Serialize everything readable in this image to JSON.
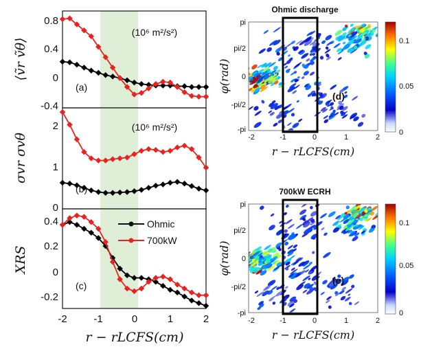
{
  "chart_data": [
    {
      "panel": "(a)",
      "type": "line",
      "ylabel": "⟨ṽr ṽθ⟩",
      "ylim": [
        -0.4,
        0.9
      ],
      "yticks": [
        "0.8",
        "0.4",
        "0",
        "-0.4"
      ],
      "units_note": "(10⁶ m²/s²)",
      "xlim": [
        -2,
        2
      ],
      "shaded_region": [
        -1,
        0.1
      ],
      "series": [
        {
          "color": "#000000",
          "x": [
            -2.0,
            -1.8,
            -1.6,
            -1.4,
            -1.2,
            -1.0,
            -0.8,
            -0.6,
            -0.4,
            -0.2,
            0.0,
            0.2,
            0.4,
            0.6,
            0.8,
            1.0,
            1.2,
            1.4,
            1.6,
            1.8,
            2.0
          ],
          "y": [
            0.22,
            0.21,
            0.18,
            0.14,
            0.1,
            0.07,
            0.04,
            0.02,
            0.0,
            -0.03,
            -0.06,
            -0.08,
            -0.09,
            -0.1,
            -0.1,
            -0.1,
            -0.11,
            -0.11,
            -0.12,
            -0.12,
            -0.12
          ]
        },
        {
          "color": "#e8231f",
          "x": [
            -2.0,
            -1.8,
            -1.6,
            -1.4,
            -1.2,
            -1.0,
            -0.8,
            -0.6,
            -0.4,
            -0.2,
            0.0,
            0.2,
            0.4,
            0.6,
            0.8,
            1.0,
            1.2,
            1.4,
            1.6,
            1.8,
            2.0
          ],
          "y": [
            0.79,
            0.8,
            0.72,
            0.64,
            0.56,
            0.42,
            0.28,
            0.14,
            0.0,
            -0.12,
            -0.22,
            -0.2,
            -0.14,
            -0.08,
            -0.05,
            -0.06,
            -0.12,
            -0.19,
            -0.24,
            -0.25,
            -0.25
          ]
        }
      ]
    },
    {
      "panel": "(b)",
      "type": "line",
      "ylabel": "σvr σvθ",
      "ylim": [
        0,
        2.4
      ],
      "yticks": [
        "2",
        "1",
        "0"
      ],
      "units_note": "(10⁶ m²/s²)",
      "xlim": [
        -2,
        2
      ],
      "shaded_region": [
        -1,
        0.1
      ],
      "series": [
        {
          "color": "#000000",
          "x": [
            -2.0,
            -1.8,
            -1.6,
            -1.4,
            -1.2,
            -1.0,
            -0.8,
            -0.6,
            -0.4,
            -0.2,
            0.0,
            0.2,
            0.4,
            0.6,
            0.8,
            1.0,
            1.2,
            1.4,
            1.6,
            1.8,
            2.0
          ],
          "y": [
            0.62,
            0.6,
            0.56,
            0.5,
            0.44,
            0.4,
            0.38,
            0.38,
            0.39,
            0.4,
            0.42,
            0.45,
            0.5,
            0.55,
            0.58,
            0.62,
            0.64,
            0.6,
            0.54,
            0.48,
            0.44
          ]
        },
        {
          "color": "#e8231f",
          "x": [
            -2.0,
            -1.8,
            -1.6,
            -1.4,
            -1.2,
            -1.0,
            -0.8,
            -0.6,
            -0.4,
            -0.2,
            0.0,
            0.2,
            0.4,
            0.6,
            0.8,
            1.0,
            1.2,
            1.4,
            1.6,
            1.8,
            2.0
          ],
          "y": [
            2.3,
            2.0,
            1.65,
            1.35,
            1.2,
            1.15,
            1.15,
            1.18,
            1.2,
            1.22,
            1.3,
            1.38,
            1.42,
            1.4,
            1.35,
            1.38,
            1.46,
            1.5,
            1.42,
            1.22,
            0.98
          ]
        }
      ]
    },
    {
      "panel": "(c)",
      "type": "line",
      "ylabel": "XRS",
      "ylim": [
        -0.3,
        0.45
      ],
      "yticks": [
        "0.4",
        "0.2",
        "0",
        "-0.2"
      ],
      "xlim": [
        -2,
        2
      ],
      "xticks": [
        "-2",
        "-1",
        "0",
        "1",
        "2"
      ],
      "xlabel": "r − rLCFS(cm)",
      "shaded_region": [
        -1,
        0.1
      ],
      "legend": {
        "placement": "top-right",
        "entries": [
          "Ohmic",
          "700kW"
        ]
      },
      "series": [
        {
          "name": "Ohmic",
          "color": "#000000",
          "x": [
            -2.0,
            -1.8,
            -1.6,
            -1.4,
            -1.2,
            -1.0,
            -0.8,
            -0.6,
            -0.4,
            -0.2,
            0.0,
            0.2,
            0.4,
            0.6,
            0.8,
            1.0,
            1.2,
            1.4,
            1.6,
            1.8,
            2.0
          ],
          "y": [
            0.33,
            0.35,
            0.33,
            0.3,
            0.27,
            0.23,
            0.17,
            0.08,
            0.0,
            -0.05,
            -0.07,
            -0.07,
            -0.08,
            -0.1,
            -0.13,
            -0.16,
            -0.18,
            -0.21,
            -0.24,
            -0.26,
            -0.28
          ]
        },
        {
          "name": "700kW",
          "color": "#e8231f",
          "x": [
            -2.0,
            -1.8,
            -1.6,
            -1.4,
            -1.2,
            -1.0,
            -0.8,
            -0.6,
            -0.4,
            -0.2,
            0.0,
            0.2,
            0.4,
            0.6,
            0.8,
            1.0,
            1.2,
            1.4,
            1.6,
            1.8,
            2.0
          ],
          "y": [
            0.33,
            0.38,
            0.4,
            0.39,
            0.35,
            0.3,
            0.2,
            0.05,
            -0.08,
            -0.15,
            -0.17,
            -0.15,
            -0.1,
            -0.07,
            -0.06,
            -0.08,
            -0.12,
            -0.15,
            -0.18,
            -0.2,
            -0.2
          ]
        }
      ]
    },
    {
      "panel": "(d)",
      "type": "heatmap",
      "title": "Ohmic discharge",
      "ylabel": "φ(rad)",
      "xlabel": "r − rLCFS(cm)",
      "xticks": [
        "-2",
        "-1",
        "0",
        "1",
        "2"
      ],
      "yticks": [
        "pi",
        "pi/2",
        "0",
        "-pi/2",
        "-pi"
      ],
      "colorbar_ticks": [
        "0.1",
        "0.05",
        "0"
      ],
      "colorbar_range": [
        0,
        0.12
      ],
      "highlight_box_x": [
        -0.95,
        0.1
      ]
    },
    {
      "panel": "(e)",
      "type": "heatmap",
      "title": "700kW ECRH",
      "ylabel": "φ(rad)",
      "xlabel": "r − rLCFS(cm)",
      "xticks": [
        "-2",
        "-1",
        "0",
        "1",
        "2"
      ],
      "yticks": [
        "pi",
        "pi/2",
        "0",
        "-pi/2",
        "-pi"
      ],
      "colorbar_ticks": [
        "0.1",
        "0.05",
        "0"
      ],
      "colorbar_range": [
        0,
        0.12
      ],
      "highlight_box_x": [
        -0.95,
        0.1
      ]
    }
  ]
}
